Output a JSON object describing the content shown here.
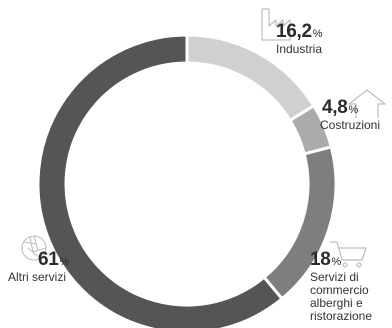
{
  "chart_data": {
    "type": "donut",
    "series": [
      {
        "name": "Industria",
        "value_text": "16,2",
        "unit": "%",
        "value": 16.2,
        "color": "#d0d0d0",
        "icon": "factory-icon"
      },
      {
        "name": "Costruzioni",
        "value_text": "4,8",
        "unit": "%",
        "value": 4.8,
        "color": "#ababab",
        "icon": "house-icon"
      },
      {
        "name": "Servizi di commercio alberghi e ristorazione",
        "value_text": "18",
        "unit": "%",
        "value": 18,
        "color": "#7e7e7e",
        "icon": "shopping-cart-icon"
      },
      {
        "name": "Altri servizi",
        "value_text": "61",
        "unit": "%",
        "value": 61,
        "color": "#555555",
        "icon": "aperture-icon"
      }
    ],
    "legend": "labels around ring",
    "separator_color": "#ffffff",
    "icon_color": "#bdbdbd"
  }
}
